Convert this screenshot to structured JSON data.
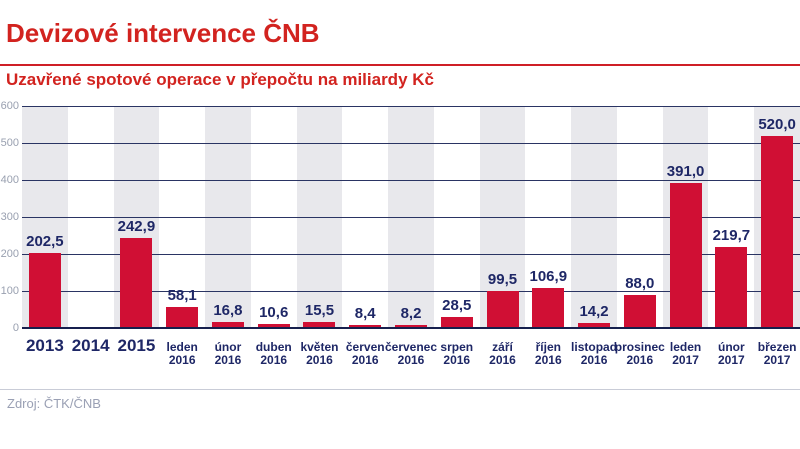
{
  "header": {
    "title": "Devizové intervence ČNB",
    "subtitle": "Uzavřené spotové operace v přepočtu na miliardy Kč"
  },
  "footer": {
    "source": "Zdroj: ČTK/ČNB"
  },
  "chart_data": {
    "type": "bar",
    "title": "Devizové intervence ČNB",
    "subtitle": "Uzavřené spotové operace v přepočtu na miliardy Kč",
    "unit": "miliardy Kč",
    "categories": [
      {
        "label": "2013",
        "year": ""
      },
      {
        "label": "2014",
        "year": ""
      },
      {
        "label": "2015",
        "year": ""
      },
      {
        "label": "leden",
        "year": "2016"
      },
      {
        "label": "únor",
        "year": "2016"
      },
      {
        "label": "duben",
        "year": "2016"
      },
      {
        "label": "květen",
        "year": "2016"
      },
      {
        "label": "červen",
        "year": "2016"
      },
      {
        "label": "červenec",
        "year": "2016"
      },
      {
        "label": "srpen",
        "year": "2016"
      },
      {
        "label": "září",
        "year": "2016"
      },
      {
        "label": "říjen",
        "year": "2016"
      },
      {
        "label": "listopad",
        "year": "2016"
      },
      {
        "label": "prosinec",
        "year": "2016"
      },
      {
        "label": "leden",
        "year": "2017"
      },
      {
        "label": "únor",
        "year": "2017"
      },
      {
        "label": "březen",
        "year": "2017"
      }
    ],
    "values": [
      202.5,
      null,
      242.9,
      58.1,
      16.8,
      10.6,
      15.5,
      8.4,
      8.2,
      28.5,
      99.5,
      106.9,
      14.2,
      88.0,
      391.0,
      219.7,
      520.0
    ],
    "value_labels": [
      "202,5",
      "",
      "242,9",
      "58,1",
      "16,8",
      "10,6",
      "15,5",
      "8,4",
      "8,2",
      "28,5",
      "99,5",
      "106,9",
      "14,2",
      "88,0",
      "391,0",
      "219,7",
      "520,0"
    ],
    "ylim": [
      0,
      600
    ],
    "yticks": [
      0,
      100,
      200,
      300,
      400,
      500,
      600
    ],
    "grid": true,
    "legend": "none",
    "bar_color": "#d00f34",
    "title_color": "#d2231f",
    "label_color": "#1e2766",
    "stripe_color": "#e8e8ec",
    "grid_color": "#2a3463",
    "ytick_color": "#99a0b0"
  }
}
